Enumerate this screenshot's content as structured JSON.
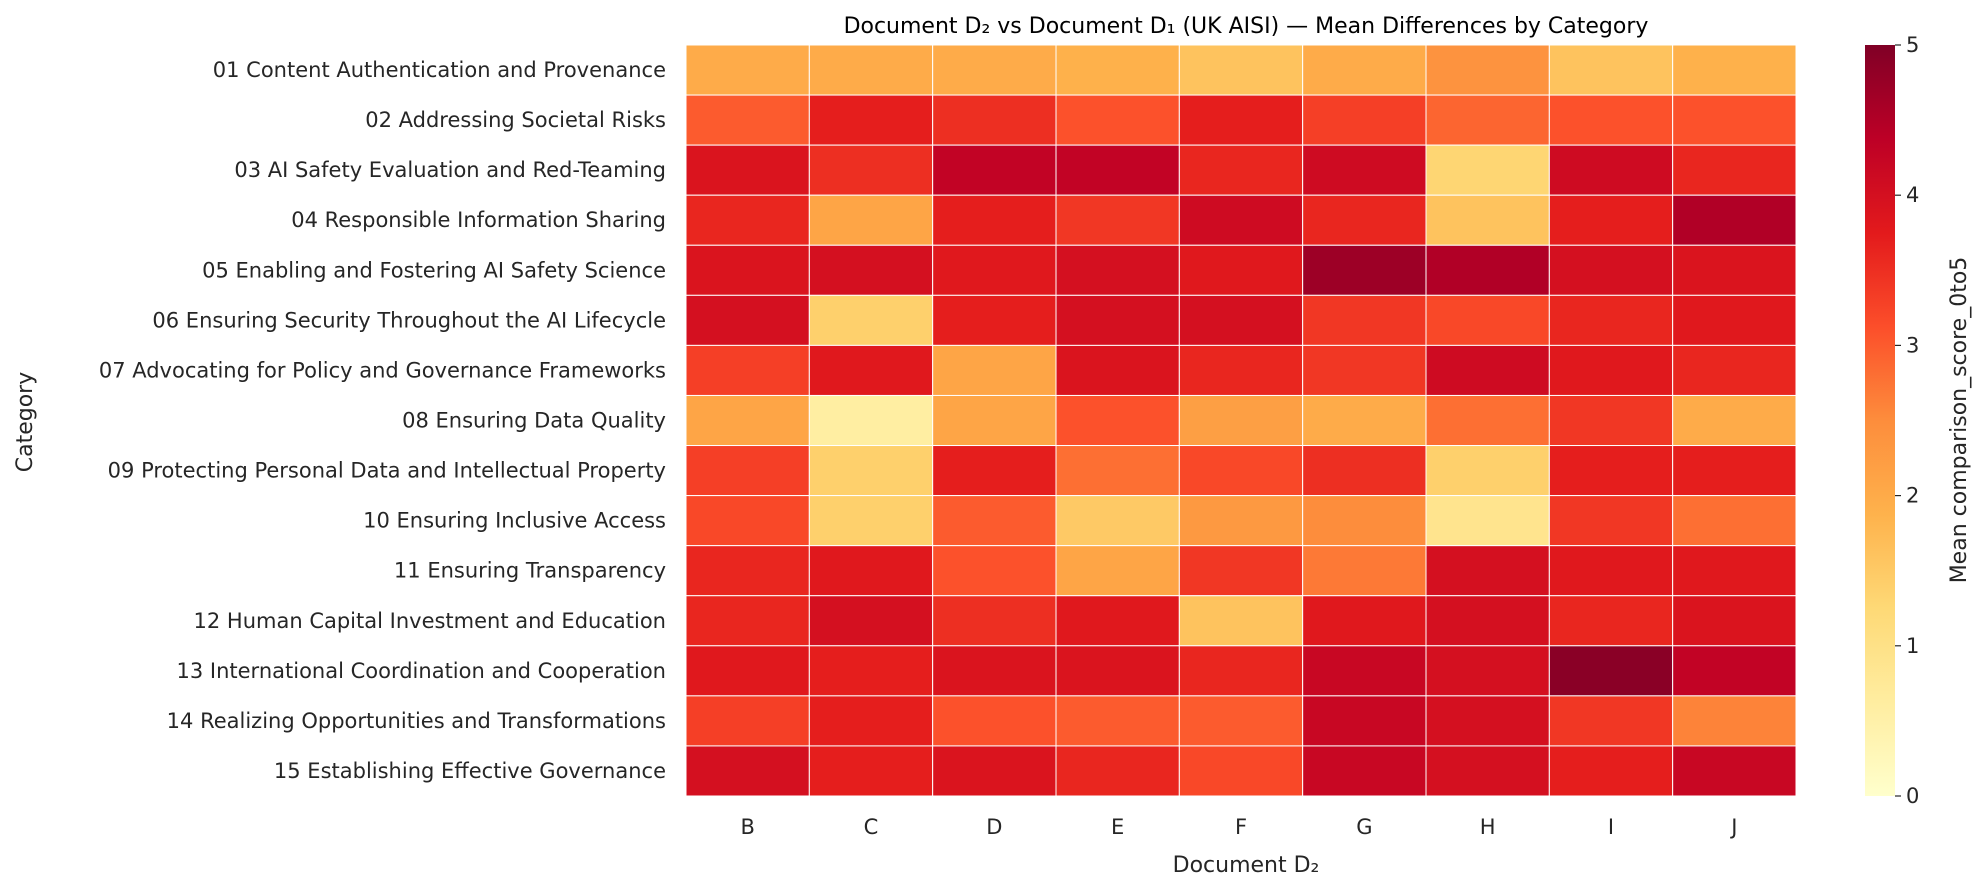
{
  "chart_data": {
    "type": "heatmap",
    "title": "Document D₂ vs Document D₁ (UK AISI) — Mean Differences by Category",
    "xlabel": "Document D₂",
    "ylabel": "Category",
    "colorbar_label": "Mean comparison_score_0to5",
    "colormap": "YlOrRd",
    "vmin": 0,
    "vmax": 5,
    "colorbar_ticks": [
      0,
      1,
      2,
      3,
      4,
      5
    ],
    "columns": [
      "B",
      "C",
      "D",
      "E",
      "F",
      "G",
      "H",
      "I",
      "J"
    ],
    "rows": [
      "01 Content Authentication and Provenance",
      "02 Addressing Societal Risks",
      "03 AI Safety Evaluation and Red-Teaming",
      "04 Responsible Information Sharing",
      "05 Enabling and Fostering AI Safety Science",
      "06 Ensuring Security Throughout the AI Lifecycle",
      "07 Advocating for Policy and Governance Frameworks",
      "08 Ensuring Data Quality",
      "09 Protecting Personal Data and Intellectual Property",
      "10 Ensuring Inclusive Access",
      "11 Ensuring Transparency",
      "12 Human Capital Investment and Education",
      "13 International Coordination and Cooperation",
      "14 Realizing Opportunities and Transformations",
      "15 Establishing Effective Governance"
    ],
    "values": [
      [
        2.0,
        2.0,
        2.0,
        1.9,
        1.6,
        2.0,
        2.4,
        1.6,
        1.9
      ],
      [
        3.0,
        3.7,
        3.5,
        3.1,
        3.7,
        3.3,
        2.9,
        3.1,
        3.1
      ],
      [
        3.9,
        3.5,
        4.3,
        4.3,
        3.6,
        4.1,
        1.3,
        4.1,
        3.6
      ],
      [
        3.6,
        2.1,
        3.7,
        3.4,
        4.1,
        3.6,
        1.6,
        3.7,
        4.5
      ],
      [
        3.9,
        4.0,
        3.8,
        4.0,
        3.8,
        4.7,
        4.5,
        4.0,
        3.9
      ],
      [
        4.0,
        1.4,
        3.7,
        4.0,
        4.0,
        3.4,
        3.2,
        3.6,
        3.8
      ],
      [
        3.3,
        3.8,
        2.1,
        3.9,
        3.6,
        3.4,
        4.1,
        3.8,
        3.6
      ],
      [
        2.1,
        0.6,
        2.1,
        3.1,
        2.2,
        2.0,
        2.8,
        3.4,
        2.0
      ],
      [
        3.3,
        1.4,
        3.7,
        2.8,
        3.2,
        3.5,
        1.4,
        3.7,
        3.7
      ],
      [
        3.2,
        1.4,
        3.0,
        1.5,
        2.3,
        2.5,
        0.9,
        3.4,
        2.8
      ],
      [
        3.6,
        3.8,
        3.1,
        2.1,
        3.4,
        2.7,
        4.0,
        3.8,
        3.8
      ],
      [
        3.6,
        4.0,
        3.5,
        3.8,
        1.6,
        3.8,
        4.0,
        3.6,
        3.9
      ],
      [
        3.8,
        3.7,
        3.9,
        3.9,
        3.6,
        4.2,
        4.0,
        4.9,
        4.3
      ],
      [
        3.3,
        3.7,
        3.1,
        3.0,
        3.0,
        4.2,
        4.0,
        3.4,
        2.6
      ],
      [
        4.0,
        3.7,
        3.9,
        3.6,
        3.2,
        4.2,
        4.0,
        3.7,
        4.2
      ]
    ]
  }
}
